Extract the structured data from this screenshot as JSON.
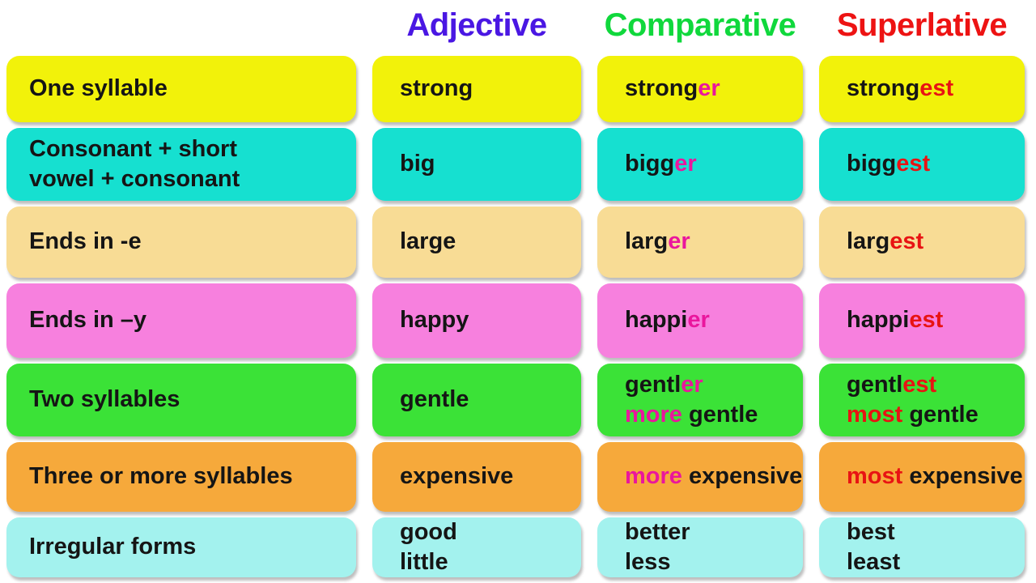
{
  "page": {
    "background": "#ffffff"
  },
  "header": {
    "columns": [
      {
        "label": "Adjective",
        "color": "#4A17E3"
      },
      {
        "label": "Comparative",
        "color": "#10D83C"
      },
      {
        "label": "Superlative",
        "color": "#ED1313"
      }
    ]
  },
  "palette": {
    "k": "#151515",
    "p": "#EA169D",
    "r": "#E81313"
  },
  "rows": [
    {
      "bg": "#F2F20A",
      "category": [
        "One syllable"
      ],
      "adjective": [
        [
          {
            "t": "strong",
            "c": "k"
          }
        ]
      ],
      "comparative": [
        [
          {
            "t": "strong",
            "c": "k"
          },
          {
            "t": "er",
            "c": "p"
          }
        ]
      ],
      "superlative": [
        [
          {
            "t": "strong",
            "c": "k"
          },
          {
            "t": "est",
            "c": "r"
          }
        ]
      ]
    },
    {
      "bg": "#16E0D0",
      "category": [
        "Consonant + short",
        "vowel + consonant"
      ],
      "adjective": [
        [
          {
            "t": "big",
            "c": "k"
          }
        ]
      ],
      "comparative": [
        [
          {
            "t": "bigg",
            "c": "k"
          },
          {
            "t": "er",
            "c": "p"
          }
        ]
      ],
      "superlative": [
        [
          {
            "t": "bigg",
            "c": "k"
          },
          {
            "t": "est",
            "c": "r"
          }
        ]
      ]
    },
    {
      "bg": "#F8DC95",
      "category": [
        "Ends in -e"
      ],
      "adjective": [
        [
          {
            "t": "large",
            "c": "k"
          }
        ]
      ],
      "comparative": [
        [
          {
            "t": "larg",
            "c": "k"
          },
          {
            "t": "er",
            "c": "p"
          }
        ]
      ],
      "superlative": [
        [
          {
            "t": "larg",
            "c": "k"
          },
          {
            "t": "est",
            "c": "r"
          }
        ]
      ]
    },
    {
      "bg": "#F780DE",
      "category": [
        "Ends in –y"
      ],
      "adjective": [
        [
          {
            "t": "happy",
            "c": "k"
          }
        ]
      ],
      "comparative": [
        [
          {
            "t": "happi",
            "c": "k"
          },
          {
            "t": "er",
            "c": "p"
          }
        ]
      ],
      "superlative": [
        [
          {
            "t": "happi",
            "c": "k"
          },
          {
            "t": "est",
            "c": "r"
          }
        ]
      ]
    },
    {
      "bg": "#3BE237",
      "category": [
        "Two syllables"
      ],
      "adjective": [
        [
          {
            "t": "gentle",
            "c": "k"
          }
        ]
      ],
      "comparative": [
        [
          {
            "t": "gentl",
            "c": "k"
          },
          {
            "t": "er",
            "c": "p"
          }
        ],
        [
          {
            "t": "more ",
            "c": "p"
          },
          {
            "t": "gentle",
            "c": "k"
          }
        ]
      ],
      "superlative": [
        [
          {
            "t": "gentl",
            "c": "k"
          },
          {
            "t": "est",
            "c": "r"
          }
        ],
        [
          {
            "t": "most ",
            "c": "r"
          },
          {
            "t": "gentle",
            "c": "k"
          }
        ]
      ]
    },
    {
      "bg": "#F6A93B",
      "category": [
        "Three or more syllables"
      ],
      "adjective": [
        [
          {
            "t": "expensive",
            "c": "k"
          }
        ]
      ],
      "comparative": [
        [
          {
            "t": "more ",
            "c": "p"
          },
          {
            "t": "expensive",
            "c": "k"
          }
        ]
      ],
      "superlative": [
        [
          {
            "t": "most ",
            "c": "r"
          },
          {
            "t": "expensive",
            "c": "k"
          }
        ]
      ]
    },
    {
      "bg": "#A3F2EE",
      "category": [
        "Irregular forms"
      ],
      "adjective": [
        [
          {
            "t": "good",
            "c": "k"
          }
        ],
        [
          {
            "t": "little",
            "c": "k"
          }
        ]
      ],
      "comparative": [
        [
          {
            "t": "better",
            "c": "k"
          }
        ],
        [
          {
            "t": "less",
            "c": "k"
          }
        ]
      ],
      "superlative": [
        [
          {
            "t": "best",
            "c": "k"
          }
        ],
        [
          {
            "t": "least",
            "c": "k"
          }
        ]
      ]
    }
  ],
  "chart_data": {
    "type": "table",
    "title": "",
    "columns": [
      "",
      "Adjective",
      "Comparative",
      "Superlative"
    ],
    "rows": [
      [
        "One syllable",
        "strong",
        "stronger",
        "strongest"
      ],
      [
        "Consonant + short vowel + consonant",
        "big",
        "bigger",
        "biggest"
      ],
      [
        "Ends in -e",
        "large",
        "larger",
        "largest"
      ],
      [
        "Ends in –y",
        "happy",
        "happier",
        "happiest"
      ],
      [
        "Two syllables",
        "gentle",
        "gentler / more gentle",
        "gentlest / most gentle"
      ],
      [
        "Three or more syllables",
        "expensive",
        "more expensive",
        "most expensive"
      ],
      [
        "Irregular forms",
        "good / little",
        "better / less",
        "best / least"
      ]
    ],
    "legend_position": "none",
    "notes": "Comparative suffixes -er / 'more' highlighted pink; superlative suffixes -est / 'most' highlighted red; each row color-coded"
  }
}
